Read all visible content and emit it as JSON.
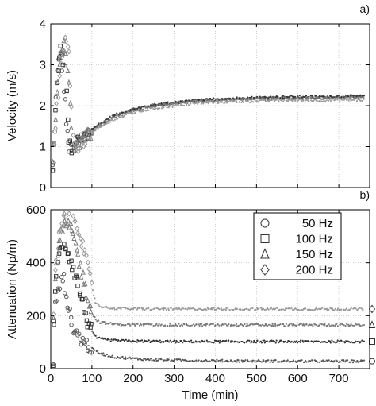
{
  "chart_data": [
    {
      "type": "scatter",
      "panel_label": "a)",
      "ylabel": "Velocity (m/s)",
      "xlabel": "",
      "xlim": [
        0,
        775
      ],
      "ylim": [
        0,
        4
      ],
      "x_ticks": [
        0,
        100,
        200,
        300,
        400,
        500,
        600,
        700
      ],
      "x_tick_labels": [
        "",
        "",
        "",
        "",
        "",
        "",
        "",
        ""
      ],
      "y_ticks": [
        0,
        1,
        2,
        3,
        4
      ],
      "y_tick_labels": [
        "0",
        "1",
        "2",
        "3",
        "4"
      ],
      "grid": true,
      "series": [
        {
          "marker": "circle",
          "color": "#555555",
          "x": [
            5,
            15,
            25,
            35,
            45,
            55,
            65,
            75,
            90,
            110,
            150,
            200,
            250,
            300,
            350,
            400,
            450,
            500,
            550,
            600,
            650,
            700,
            760
          ],
          "y": [
            0.5,
            3.0,
            3.2,
            2.0,
            0.9,
            0.95,
            1.1,
            1.2,
            1.35,
            1.5,
            1.75,
            1.92,
            2.02,
            2.08,
            2.12,
            2.15,
            2.17,
            2.18,
            2.19,
            2.2,
            2.2,
            2.21,
            2.21
          ]
        },
        {
          "marker": "square",
          "color": "#333333",
          "x": [
            5,
            15,
            25,
            35,
            45,
            55,
            65,
            75,
            90,
            110,
            150,
            200,
            250,
            300,
            350,
            400,
            450,
            500,
            550,
            600,
            650,
            700,
            760
          ],
          "y": [
            0.5,
            2.5,
            3.4,
            2.8,
            1.0,
            1.0,
            1.1,
            1.2,
            1.33,
            1.48,
            1.73,
            1.9,
            2.0,
            2.07,
            2.12,
            2.16,
            2.18,
            2.2,
            2.21,
            2.22,
            2.22,
            2.23,
            2.23
          ]
        },
        {
          "marker": "triangle",
          "color": "#7a7a7a",
          "x": [
            5,
            15,
            25,
            35,
            45,
            55,
            65,
            75,
            90,
            110,
            150,
            200,
            250,
            300,
            350,
            400,
            450,
            500,
            550,
            600,
            650,
            700,
            760
          ],
          "y": [
            0.5,
            2.2,
            3.5,
            3.4,
            2.5,
            1.0,
            1.05,
            1.15,
            1.3,
            1.45,
            1.7,
            1.88,
            1.98,
            2.05,
            2.1,
            2.13,
            2.15,
            2.16,
            2.17,
            2.18,
            2.18,
            2.19,
            2.19
          ]
        },
        {
          "marker": "diamond",
          "color": "#9a9a9a",
          "x": [
            5,
            15,
            25,
            35,
            45,
            55,
            65,
            75,
            90,
            110,
            150,
            200,
            250,
            300,
            350,
            400,
            450,
            500,
            550,
            600,
            650,
            700,
            760
          ],
          "y": [
            0.5,
            2.0,
            3.0,
            3.6,
            3.2,
            1.0,
            1.0,
            1.1,
            1.25,
            1.4,
            1.65,
            1.83,
            1.93,
            2.0,
            2.05,
            2.08,
            2.1,
            2.11,
            2.12,
            2.13,
            2.13,
            2.14,
            2.14
          ]
        }
      ]
    },
    {
      "type": "scatter",
      "panel_label": "b)",
      "ylabel": "Attenuation (Np/m)",
      "xlabel": "Time (min)",
      "xlim": [
        0,
        775
      ],
      "ylim": [
        0,
        600
      ],
      "x_ticks": [
        0,
        100,
        200,
        300,
        400,
        500,
        600,
        700
      ],
      "x_tick_labels": [
        "0",
        "100",
        "200",
        "300",
        "400",
        "500",
        "600",
        "700"
      ],
      "y_ticks": [
        0,
        200,
        400,
        600
      ],
      "y_tick_labels": [
        "0",
        "200",
        "400",
        "600"
      ],
      "grid": true,
      "legend_position": "top-right",
      "series": [
        {
          "name": "50 Hz",
          "marker": "circle",
          "color": "#555555",
          "x": [
            5,
            10,
            20,
            30,
            40,
            50,
            60,
            80,
            100,
            120,
            150,
            200,
            250,
            300,
            400,
            500,
            600,
            700,
            760
          ],
          "y": [
            10,
            250,
            300,
            350,
            250,
            170,
            140,
            100,
            75,
            58,
            45,
            38,
            34,
            32,
            30,
            29,
            28,
            28,
            28
          ],
          "end_marker_y": 28
        },
        {
          "name": "100 Hz",
          "marker": "square",
          "color": "#333333",
          "x": [
            5,
            10,
            20,
            30,
            40,
            50,
            60,
            70,
            80,
            90,
            100,
            110,
            120,
            150,
            200,
            250,
            300,
            400,
            500,
            600,
            700,
            760
          ],
          "y": [
            10,
            300,
            430,
            480,
            450,
            400,
            350,
            290,
            230,
            175,
            140,
            120,
            112,
            106,
            104,
            103,
            102,
            102,
            102,
            102,
            102,
            102
          ],
          "end_marker_y": 102
        },
        {
          "name": "150 Hz",
          "marker": "triangle",
          "color": "#7a7a7a",
          "x": [
            5,
            10,
            20,
            30,
            40,
            50,
            60,
            70,
            80,
            90,
            100,
            110,
            120,
            150,
            200,
            250,
            300,
            400,
            500,
            600,
            700,
            760
          ],
          "y": [
            10,
            330,
            470,
            530,
            550,
            520,
            470,
            400,
            330,
            270,
            210,
            185,
            175,
            168,
            166,
            165,
            165,
            165,
            165,
            165,
            165,
            165
          ],
          "end_marker_y": 165
        },
        {
          "name": "200 Hz",
          "marker": "diamond",
          "color": "#9a9a9a",
          "x": [
            5,
            10,
            20,
            30,
            40,
            50,
            60,
            70,
            80,
            90,
            100,
            110,
            120,
            150,
            200,
            250,
            300,
            400,
            500,
            600,
            700,
            760
          ],
          "y": [
            10,
            350,
            500,
            570,
            600,
            590,
            560,
            520,
            450,
            380,
            300,
            250,
            235,
            228,
            226,
            225,
            225,
            225,
            225,
            225,
            225,
            225
          ],
          "end_marker_y": 225
        }
      ]
    }
  ]
}
